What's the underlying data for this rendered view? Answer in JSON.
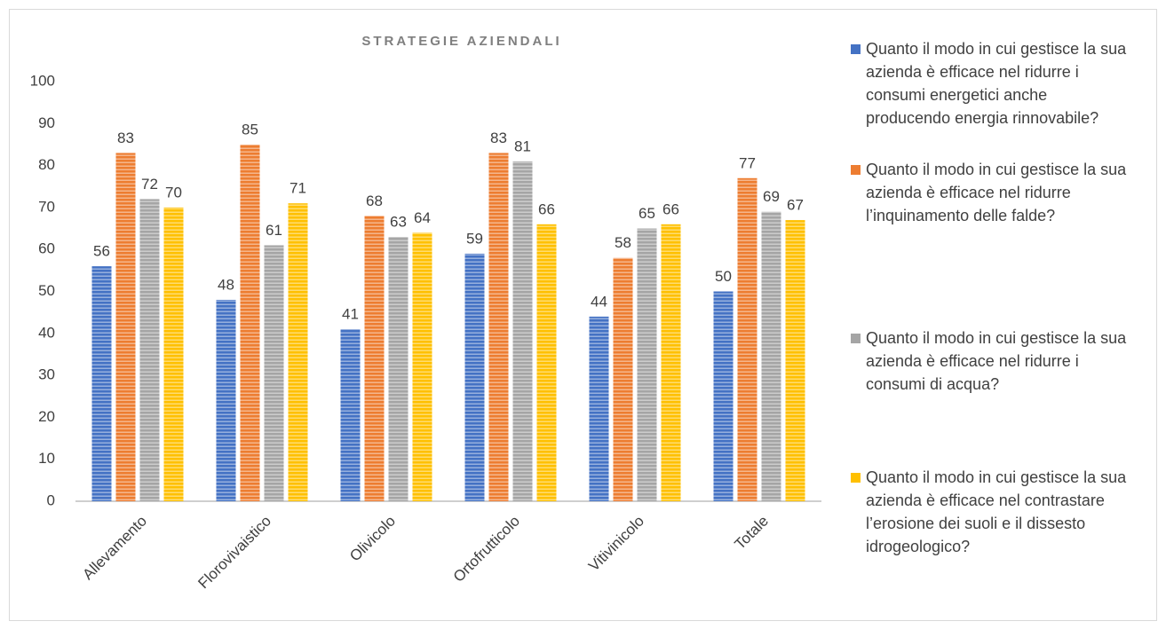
{
  "chart_data": {
    "type": "bar",
    "title": "STRATEGIE AZIENDALI",
    "categories": [
      "Allevamento",
      "Florovivaistico",
      "Olivicolo",
      "Ortofrutticolo",
      "Vitivinicolo",
      "Totale"
    ],
    "series": [
      {
        "name": "Quanto il modo in cui gestisce la sua azienda è efficace nel ridurre i consumi energetici anche producendo energia rinnovabile?",
        "color": "#4472c4",
        "values": [
          56,
          48,
          41,
          59,
          44,
          50
        ]
      },
      {
        "name": "Quanto il modo in cui gestisce la sua azienda è efficace nel ridurre l’inquinamento delle falde?",
        "color": "#ed7d31",
        "values": [
          83,
          85,
          68,
          83,
          58,
          77
        ]
      },
      {
        "name": "Quanto il modo in cui gestisce la sua azienda è efficace nel ridurre i consumi di acqua?",
        "color": "#a5a5a5",
        "values": [
          72,
          61,
          63,
          81,
          65,
          69
        ]
      },
      {
        "name": "Quanto il modo in cui gestisce la sua azienda è efficace nel contrastare l’erosione dei suoli e il dissesto idrogeologico?",
        "color": "#ffc000",
        "values": [
          70,
          71,
          64,
          66,
          66,
          67
        ]
      }
    ],
    "ylim": [
      0,
      100
    ],
    "yticks": [
      0,
      10,
      20,
      30,
      40,
      50,
      60,
      70,
      80,
      90,
      100
    ],
    "legend": "right"
  }
}
